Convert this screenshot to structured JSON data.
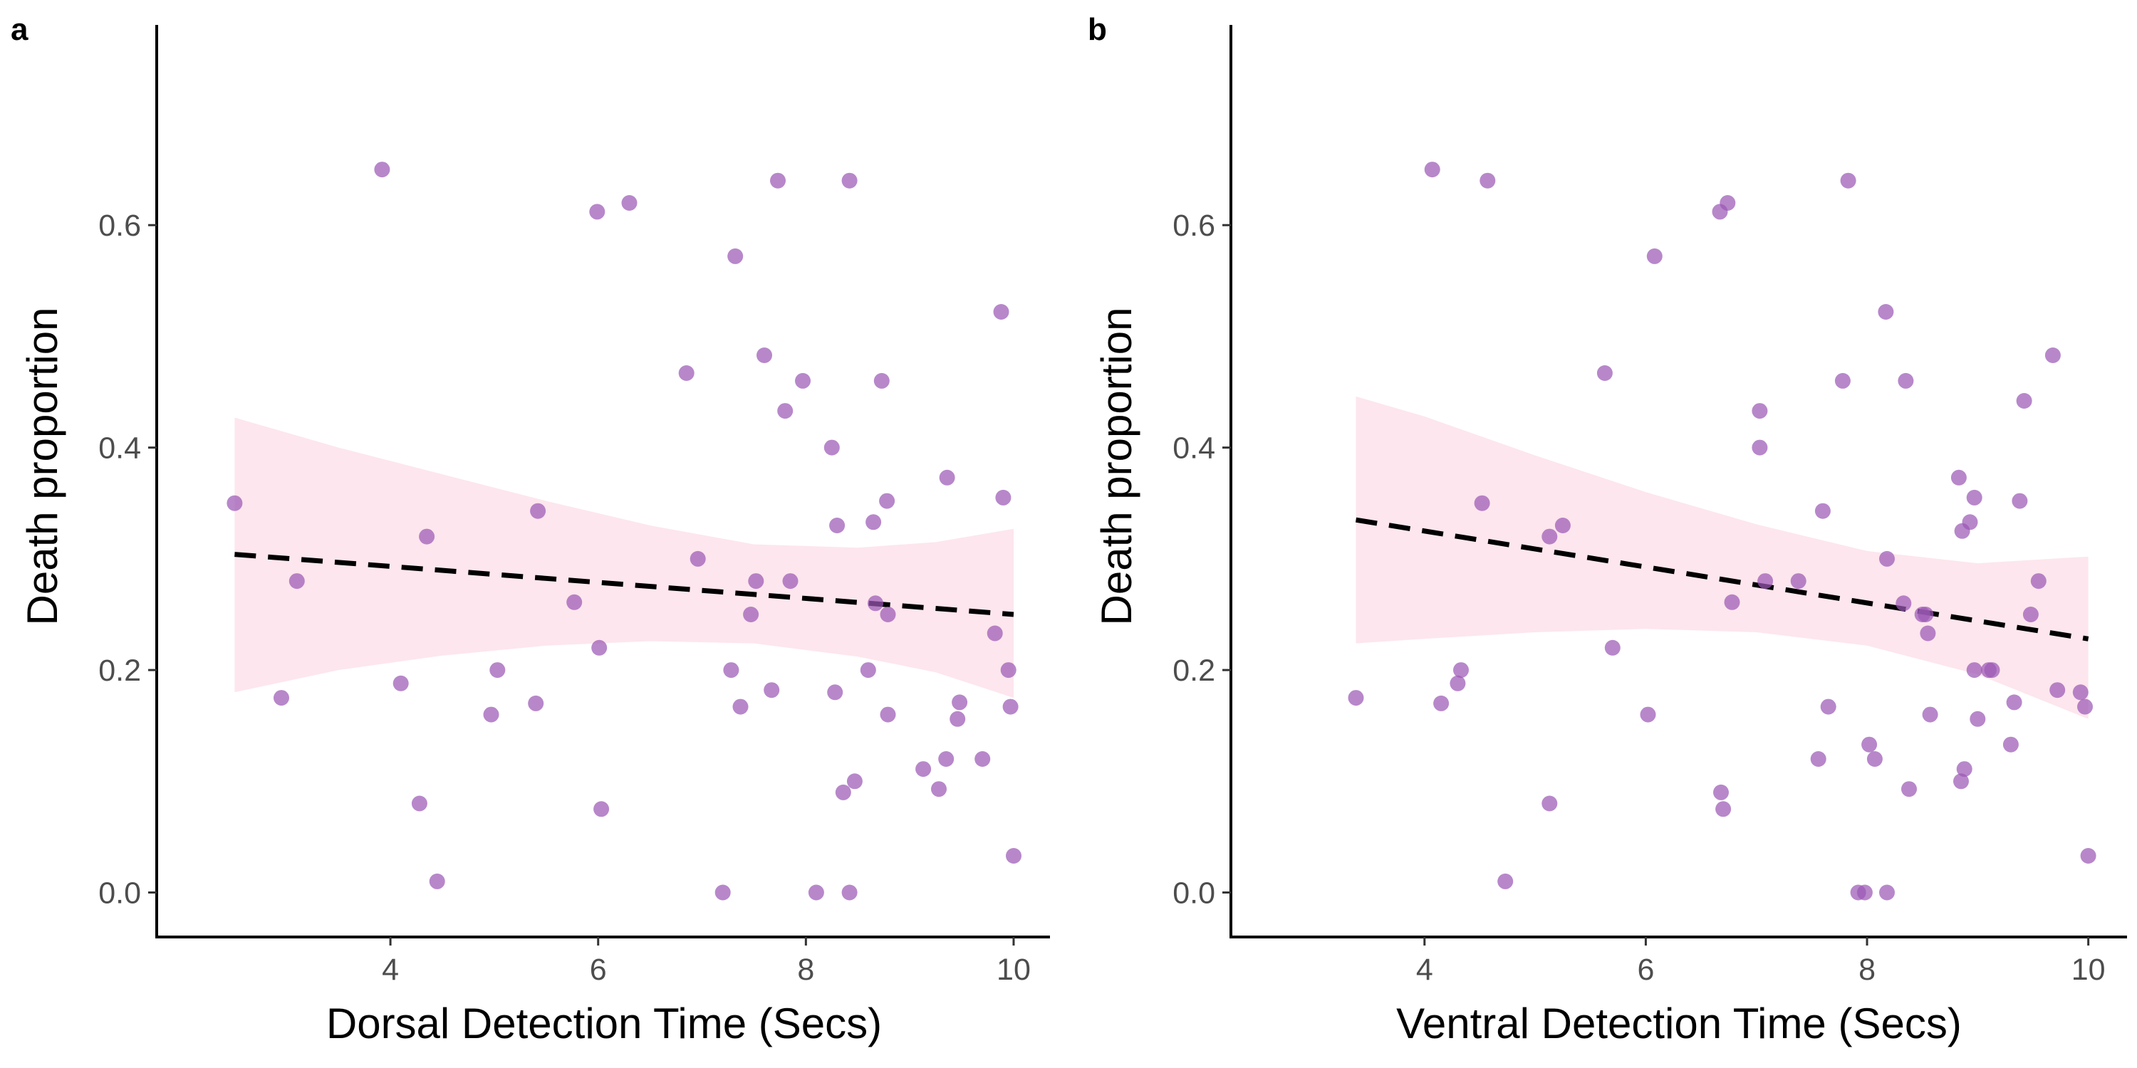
{
  "chart_data": [
    {
      "type": "scatter",
      "panel_label": "a",
      "xlabel": "Dorsal Detection Time (Secs)",
      "ylabel": "Death proportion",
      "xlim": [
        1.75,
        10.35
      ],
      "ylim": [
        -0.04,
        0.78
      ],
      "x_ticks": [
        4,
        6,
        8,
        10
      ],
      "x_tick_labels": [
        "4",
        "6",
        "8",
        "10"
      ],
      "y_ticks": [
        0.0,
        0.2,
        0.4,
        0.6
      ],
      "y_tick_labels": [
        "0.0",
        "0.2",
        "0.4",
        "0.6"
      ],
      "grid": false,
      "point_color": "#9b59b6",
      "trend_color": "#000000",
      "band_color": "#fde2ea",
      "points": [
        [
          2.5,
          0.35
        ],
        [
          2.95,
          0.175
        ],
        [
          3.1,
          0.28
        ],
        [
          3.92,
          0.65
        ],
        [
          4.1,
          0.188
        ],
        [
          4.28,
          0.08
        ],
        [
          4.35,
          0.32
        ],
        [
          4.45,
          0.01
        ],
        [
          4.97,
          0.16
        ],
        [
          5.03,
          0.2
        ],
        [
          5.4,
          0.17
        ],
        [
          5.42,
          0.343
        ],
        [
          5.77,
          0.261
        ],
        [
          5.99,
          0.612
        ],
        [
          6.01,
          0.22
        ],
        [
          6.03,
          0.075
        ],
        [
          6.3,
          0.62
        ],
        [
          6.85,
          0.467
        ],
        [
          6.96,
          0.3
        ],
        [
          7.2,
          0.0
        ],
        [
          7.28,
          0.2
        ],
        [
          7.32,
          0.572
        ],
        [
          7.37,
          0.167
        ],
        [
          7.47,
          0.25
        ],
        [
          7.52,
          0.28
        ],
        [
          7.6,
          0.483
        ],
        [
          7.67,
          0.182
        ],
        [
          7.73,
          0.64
        ],
        [
          7.8,
          0.433
        ],
        [
          7.85,
          0.28
        ],
        [
          7.97,
          0.46
        ],
        [
          8.1,
          0.0
        ],
        [
          8.25,
          0.4
        ],
        [
          8.28,
          0.18
        ],
        [
          8.3,
          0.33
        ],
        [
          8.36,
          0.09
        ],
        [
          8.42,
          0.64
        ],
        [
          8.42,
          0.0
        ],
        [
          8.47,
          0.1
        ],
        [
          8.6,
          0.2
        ],
        [
          8.65,
          0.333
        ],
        [
          8.67,
          0.26
        ],
        [
          8.73,
          0.46
        ],
        [
          8.78,
          0.352
        ],
        [
          8.79,
          0.25
        ],
        [
          8.79,
          0.16
        ],
        [
          9.13,
          0.111
        ],
        [
          9.28,
          0.093
        ],
        [
          9.35,
          0.12
        ],
        [
          9.36,
          0.373
        ],
        [
          9.46,
          0.156
        ],
        [
          9.48,
          0.171
        ],
        [
          9.7,
          0.12
        ],
        [
          9.82,
          0.233
        ],
        [
          9.88,
          0.522
        ],
        [
          9.9,
          0.355
        ],
        [
          9.95,
          0.2
        ],
        [
          9.97,
          0.167
        ],
        [
          10.0,
          0.033
        ]
      ],
      "trend": {
        "x": [
          2.5,
          10.0
        ],
        "y": [
          0.304,
          0.25
        ]
      },
      "band": {
        "x": [
          2.5,
          3.5,
          4.5,
          5.5,
          6.5,
          7.5,
          8.5,
          9.25,
          10.0
        ],
        "lower": [
          0.18,
          0.2,
          0.213,
          0.222,
          0.226,
          0.224,
          0.212,
          0.198,
          0.175
        ],
        "upper": [
          0.427,
          0.4,
          0.376,
          0.352,
          0.33,
          0.313,
          0.31,
          0.315,
          0.327
        ]
      }
    },
    {
      "type": "scatter",
      "panel_label": "b",
      "xlabel": "Ventral Detection Time (Secs)",
      "ylabel": "Death proportion",
      "xlim": [
        2.25,
        10.35
      ],
      "ylim": [
        -0.04,
        0.78
      ],
      "x_ticks": [
        4,
        6,
        8,
        10
      ],
      "x_tick_labels": [
        "4",
        "6",
        "8",
        "10"
      ],
      "y_ticks": [
        0.0,
        0.2,
        0.4,
        0.6
      ],
      "y_tick_labels": [
        "0.0",
        "0.2",
        "0.4",
        "0.6"
      ],
      "grid": false,
      "point_color": "#9b59b6",
      "trend_color": "#000000",
      "band_color": "#fde2ea",
      "points": [
        [
          3.38,
          0.175
        ],
        [
          4.07,
          0.65
        ],
        [
          4.15,
          0.17
        ],
        [
          4.3,
          0.188
        ],
        [
          4.33,
          0.2
        ],
        [
          4.52,
          0.35
        ],
        [
          4.57,
          0.64
        ],
        [
          4.73,
          0.01
        ],
        [
          5.13,
          0.08
        ],
        [
          5.13,
          0.32
        ],
        [
          5.25,
          0.33
        ],
        [
          5.63,
          0.467
        ],
        [
          5.7,
          0.22
        ],
        [
          6.02,
          0.16
        ],
        [
          6.08,
          0.572
        ],
        [
          6.67,
          0.612
        ],
        [
          6.68,
          0.09
        ],
        [
          6.7,
          0.075
        ],
        [
          6.74,
          0.62
        ],
        [
          6.78,
          0.261
        ],
        [
          7.03,
          0.433
        ],
        [
          7.03,
          0.4
        ],
        [
          7.08,
          0.28
        ],
        [
          7.38,
          0.28
        ],
        [
          7.56,
          0.12
        ],
        [
          7.6,
          0.343
        ],
        [
          7.65,
          0.167
        ],
        [
          7.78,
          0.46
        ],
        [
          7.83,
          0.64
        ],
        [
          7.92,
          0.0
        ],
        [
          7.98,
          0.0
        ],
        [
          8.02,
          0.133
        ],
        [
          8.07,
          0.12
        ],
        [
          8.17,
          0.522
        ],
        [
          8.18,
          0.3
        ],
        [
          8.18,
          0.0
        ],
        [
          8.33,
          0.26
        ],
        [
          8.35,
          0.46
        ],
        [
          8.38,
          0.093
        ],
        [
          8.5,
          0.25
        ],
        [
          8.53,
          0.25
        ],
        [
          8.55,
          0.233
        ],
        [
          8.57,
          0.16
        ],
        [
          8.83,
          0.373
        ],
        [
          8.85,
          0.1
        ],
        [
          8.86,
          0.325
        ],
        [
          8.88,
          0.111
        ],
        [
          8.93,
          0.333
        ],
        [
          8.97,
          0.355
        ],
        [
          8.97,
          0.2
        ],
        [
          9.0,
          0.156
        ],
        [
          9.1,
          0.2
        ],
        [
          9.13,
          0.2
        ],
        [
          9.3,
          0.133
        ],
        [
          9.33,
          0.171
        ],
        [
          9.38,
          0.352
        ],
        [
          9.42,
          0.442
        ],
        [
          9.48,
          0.25
        ],
        [
          9.55,
          0.28
        ],
        [
          9.68,
          0.483
        ],
        [
          9.72,
          0.182
        ],
        [
          9.93,
          0.18
        ],
        [
          9.97,
          0.167
        ],
        [
          10.0,
          0.033
        ]
      ],
      "trend": {
        "x": [
          3.38,
          10.0
        ],
        "y": [
          0.335,
          0.228
        ]
      },
      "band": {
        "x": [
          3.38,
          4.0,
          5.0,
          6.0,
          7.0,
          8.0,
          9.0,
          10.0
        ],
        "lower": [
          0.224,
          0.228,
          0.234,
          0.237,
          0.234,
          0.222,
          0.196,
          0.156
        ],
        "upper": [
          0.446,
          0.428,
          0.393,
          0.36,
          0.331,
          0.307,
          0.296,
          0.302
        ]
      }
    }
  ]
}
